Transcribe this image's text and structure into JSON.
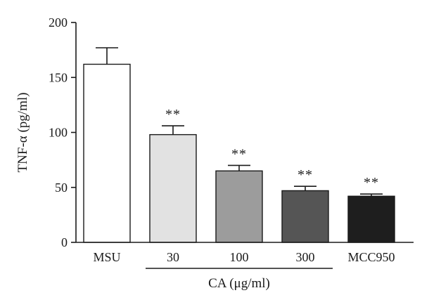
{
  "chart_data": {
    "type": "bar",
    "ylabel": "TNF-α (pg/ml)",
    "ylim": [
      0,
      200
    ],
    "yticks": [
      0,
      50,
      100,
      150,
      200
    ],
    "categories": [
      "MSU",
      "30",
      "100",
      "300",
      "MCC950"
    ],
    "values": [
      162,
      98,
      65,
      47,
      42
    ],
    "errors": [
      15,
      8,
      5,
      4,
      2
    ],
    "significance": [
      "",
      "**",
      "**",
      "**",
      "**"
    ],
    "bar_colors": [
      "#ffffff",
      "#e2e2e2",
      "#9c9c9c",
      "#555555",
      "#1e1e1e"
    ],
    "group_label": "CA (μg/ml)",
    "group_categories": [
      "30",
      "100",
      "300"
    ],
    "grid": false,
    "legend": "none"
  }
}
